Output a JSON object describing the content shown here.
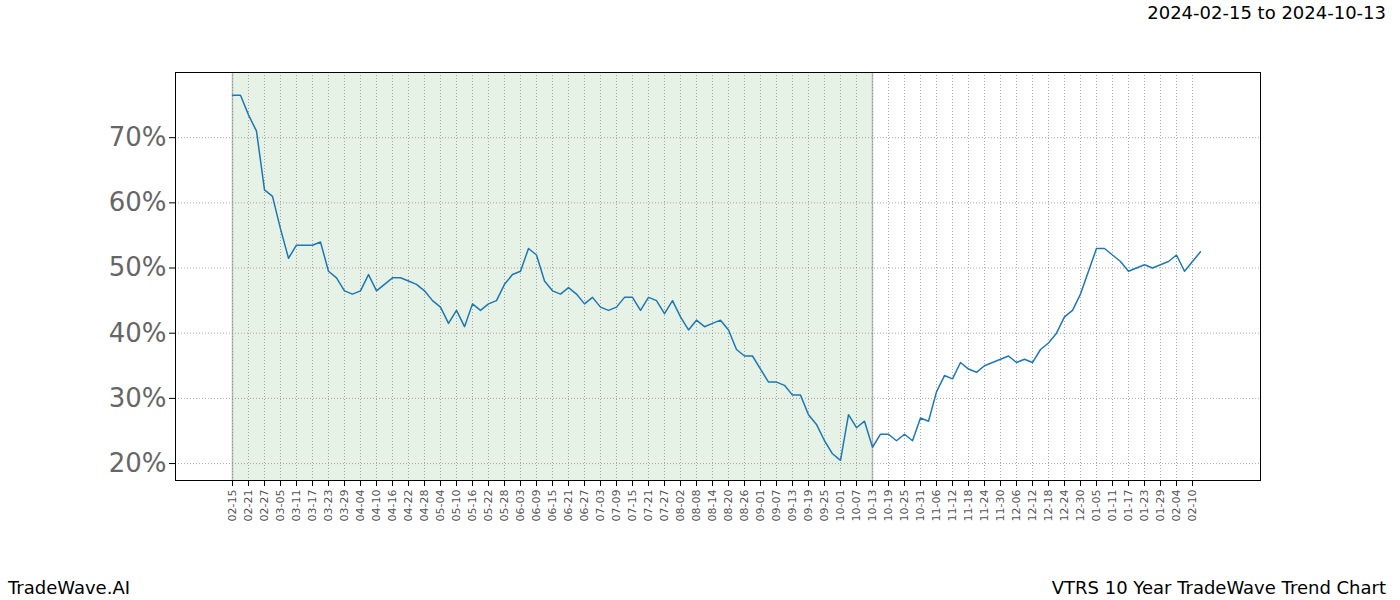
{
  "chart_data": {
    "type": "line",
    "title": "2024-02-15 to 2024-10-13",
    "source": "TradeWave.AI",
    "caption": "VTRS 10 Year TradeWave Trend Chart",
    "color": "#1f77b4",
    "grid": true,
    "highlight": {
      "start": "02-15",
      "end": "10-13",
      "color": "#e6f2e6"
    },
    "ylim": [
      17.4,
      80
    ],
    "yticks": [
      {
        "value": 20,
        "label": "20%"
      },
      {
        "value": 30,
        "label": "30%"
      },
      {
        "value": 40,
        "label": "40%"
      },
      {
        "value": 50,
        "label": "50%"
      },
      {
        "value": 60,
        "label": "60%"
      },
      {
        "value": 70,
        "label": "70%"
      }
    ],
    "x": [
      "02-15",
      null,
      "02-21",
      null,
      "02-27",
      null,
      "03-05",
      null,
      "03-11",
      null,
      "03-17",
      null,
      "03-23",
      null,
      "03-29",
      null,
      "04-04",
      null,
      "04-10",
      null,
      "04-16",
      null,
      "04-22",
      null,
      "04-28",
      null,
      "05-04",
      null,
      "05-10",
      null,
      "05-16",
      null,
      "05-22",
      null,
      "05-28",
      null,
      "06-03",
      null,
      "06-09",
      null,
      "06-15",
      null,
      "06-21",
      null,
      "06-27",
      null,
      "07-03",
      null,
      "07-09",
      null,
      "07-15",
      null,
      "07-21",
      null,
      "07-27",
      null,
      "08-02",
      null,
      "08-08",
      null,
      "08-14",
      null,
      "08-20",
      null,
      "08-26",
      null,
      "09-01",
      null,
      "09-07",
      null,
      "09-13",
      null,
      "09-19",
      null,
      "09-25",
      null,
      "10-01",
      null,
      "10-07",
      null,
      "10-13",
      null,
      "10-19",
      null,
      "10-25",
      null,
      "10-31",
      null,
      "11-06",
      null,
      "11-12",
      null,
      "11-18",
      null,
      "11-24",
      null,
      "11-30",
      null,
      "12-06",
      null,
      "12-12",
      null,
      "12-18",
      null,
      "12-24",
      null,
      "12-30",
      null,
      "01-05",
      null,
      "01-11",
      null,
      "01-17",
      null,
      "01-23",
      null,
      "01-29",
      null,
      "02-04",
      null,
      "02-10",
      null
    ],
    "values": [
      76.5,
      76.5,
      73.5,
      71,
      62,
      61,
      56,
      51.5,
      53.5,
      53.5,
      53.5,
      54,
      49.5,
      48.5,
      46.5,
      46,
      46.5,
      49,
      46.5,
      47.5,
      48.5,
      48.5,
      48,
      47.5,
      46.5,
      45,
      44,
      41.5,
      43.5,
      41,
      44.5,
      43.5,
      44.5,
      45,
      47.5,
      49,
      49.5,
      53,
      52,
      48,
      46.5,
      46,
      47,
      46,
      44.5,
      45.5,
      44,
      43.5,
      44,
      45.5,
      45.5,
      43.5,
      45.5,
      45,
      43,
      45,
      42.5,
      40.5,
      42,
      41,
      41.5,
      42,
      40.5,
      37.5,
      36.5,
      36.5,
      34.5,
      32.5,
      32.5,
      32,
      30.5,
      30.5,
      27.5,
      26,
      23.5,
      21.5,
      20.5,
      27.5,
      25.5,
      26.5,
      22.5,
      24.5,
      24.5,
      23.5,
      24.5,
      23.5,
      27,
      26.5,
      31,
      33.5,
      33,
      35.5,
      34.5,
      34,
      35,
      35.5,
      36,
      36.5,
      35.5,
      36,
      35.5,
      37.5,
      38.5,
      40,
      42.5,
      43.5,
      46,
      49.5,
      53,
      53,
      52,
      51,
      49.5,
      50,
      50.5,
      50,
      50.5,
      51,
      52,
      49.5,
      51,
      52.5
    ]
  }
}
